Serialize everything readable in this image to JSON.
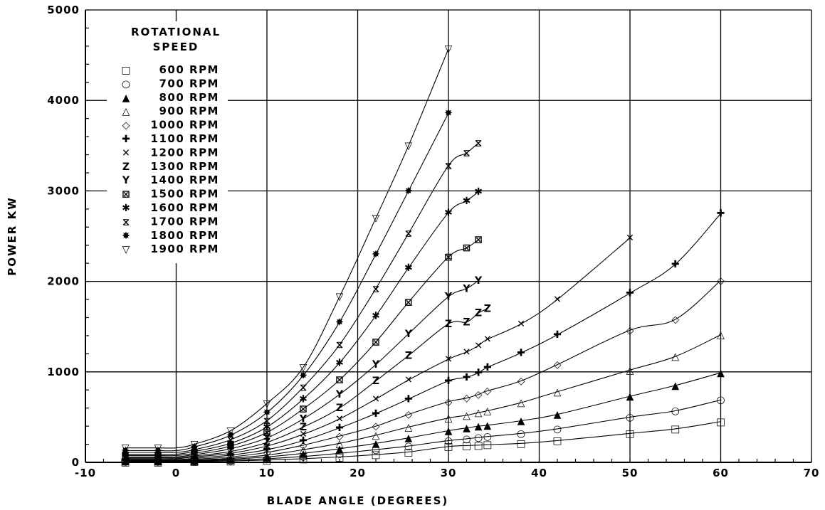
{
  "chart_data": {
    "type": "line",
    "xlabel": "BLADE ANGLE (DEGREES)",
    "ylabel": "POWER KW",
    "xlim": [
      -10,
      70
    ],
    "ylim": [
      0,
      5000
    ],
    "x_ticks": [
      "-10",
      "0",
      "10",
      "20",
      "30",
      "40",
      "50",
      "60",
      "70"
    ],
    "y_ticks": [
      "0",
      "1000",
      "2000",
      "3000",
      "4000",
      "5000"
    ],
    "grid": true,
    "legend_position": "top-left",
    "legend_title": [
      "ROTATIONAL",
      "SPEED"
    ],
    "series": [
      {
        "name": "600 RPM",
        "marker": "□",
        "x": [
          -5.6,
          -4,
          -2,
          0,
          2,
          6,
          10,
          14,
          18,
          22,
          25.6,
          30,
          32,
          33.3,
          34.3,
          38,
          42,
          50,
          55,
          60
        ],
        "y": [
          5,
          5,
          5,
          5,
          10,
          15,
          25,
          40,
          60,
          85,
          115,
          175,
          185,
          190,
          195,
          210,
          240,
          320,
          370,
          450
        ]
      },
      {
        "name": "700 RPM",
        "marker": "○",
        "x": [
          -5.6,
          -4,
          -2,
          0,
          2,
          6,
          10,
          14,
          18,
          22,
          25.6,
          30,
          32,
          33.3,
          34.3,
          38,
          42,
          50,
          55,
          60
        ],
        "y": [
          10,
          10,
          10,
          10,
          15,
          25,
          40,
          65,
          100,
          140,
          180,
          240,
          260,
          275,
          285,
          320,
          370,
          500,
          570,
          690
        ]
      },
      {
        "name": "800 RPM",
        "marker": "▲",
        "x": [
          -5.6,
          -4,
          -2,
          0,
          2,
          6,
          10,
          14,
          18,
          22,
          25.6,
          30,
          32,
          33.3,
          34.3,
          38,
          42,
          50,
          55,
          60
        ],
        "y": [
          15,
          15,
          15,
          15,
          20,
          35,
          60,
          100,
          150,
          210,
          270,
          350,
          380,
          400,
          410,
          460,
          530,
          730,
          850,
          990
        ]
      },
      {
        "name": "900 RPM",
        "marker": "△",
        "x": [
          -5.6,
          -4,
          -2,
          0,
          2,
          6,
          10,
          14,
          18,
          22,
          25.6,
          30,
          32,
          33.3,
          34.3,
          38,
          42,
          50,
          55,
          60
        ],
        "y": [
          20,
          20,
          20,
          20,
          25,
          45,
          80,
          140,
          210,
          300,
          390,
          490,
          520,
          550,
          570,
          660,
          780,
          1020,
          1170,
          1410
        ]
      },
      {
        "name": "1000 RPM",
        "marker": "◇",
        "x": [
          -5.6,
          -4,
          -2,
          0,
          2,
          6,
          10,
          14,
          18,
          22,
          25.6,
          30,
          32,
          33.3,
          34.3,
          38,
          42,
          50,
          55,
          60
        ],
        "y": [
          25,
          25,
          25,
          25,
          35,
          60,
          110,
          190,
          290,
          400,
          530,
          670,
          710,
          750,
          790,
          900,
          1080,
          1460,
          1580,
          2010
        ]
      },
      {
        "name": "1100 RPM",
        "marker": "✚",
        "x": [
          -5.6,
          -4,
          -2,
          0,
          2,
          6,
          10,
          14,
          18,
          22,
          25.6,
          30,
          32,
          33.3,
          34.3,
          38,
          42,
          50,
          55,
          60
        ],
        "y": [
          30,
          30,
          30,
          30,
          45,
          80,
          140,
          240,
          380,
          540,
          700,
          900,
          940,
          990,
          1050,
          1210,
          1410,
          1870,
          2190,
          2750
        ]
      },
      {
        "name": "1200 RPM",
        "marker": "✕",
        "x": [
          -5.6,
          -4,
          -2,
          0,
          2,
          6,
          10,
          14,
          18,
          22,
          25.6,
          30,
          32,
          33.3,
          34.3,
          38,
          42,
          50
        ],
        "y": [
          40,
          40,
          40,
          40,
          60,
          100,
          180,
          310,
          480,
          700,
          910,
          1140,
          1220,
          1290,
          1360,
          1530,
          1800,
          2480
        ]
      },
      {
        "name": "1300 RPM",
        "marker": "Z",
        "x": [
          -5.6,
          -4,
          -2,
          0,
          2,
          6,
          10,
          14,
          18,
          22,
          25.6,
          30,
          32,
          33.3,
          34.3
        ],
        "y": [
          50,
          50,
          50,
          50,
          70,
          120,
          220,
          390,
          600,
          900,
          1180,
          1530,
          1550,
          1650,
          1700
        ]
      },
      {
        "name": "1400 RPM",
        "marker": "Y",
        "x": [
          -5.6,
          -4,
          -2,
          0,
          2,
          6,
          10,
          14,
          18,
          22,
          25.6,
          30,
          32,
          33.3
        ],
        "y": [
          60,
          60,
          60,
          60,
          85,
          150,
          270,
          480,
          750,
          1080,
          1420,
          1830,
          1920,
          2010
        ]
      },
      {
        "name": "1500 RPM",
        "marker": "⊠",
        "x": [
          -5.6,
          -4,
          -2,
          0,
          2,
          6,
          10,
          14,
          18,
          22,
          25.6,
          30,
          32,
          33.3
        ],
        "y": [
          75,
          75,
          75,
          75,
          100,
          180,
          330,
          590,
          910,
          1330,
          1770,
          2270,
          2370,
          2460
        ]
      },
      {
        "name": "1600 RPM",
        "marker": "✱",
        "x": [
          -5.6,
          -4,
          -2,
          0,
          2,
          6,
          10,
          14,
          18,
          22,
          25.6,
          30,
          32,
          33.3
        ],
        "y": [
          90,
          90,
          90,
          90,
          120,
          210,
          390,
          700,
          1100,
          1620,
          2150,
          2760,
          2890,
          2990
        ]
      },
      {
        "name": "1700 RPM",
        "marker": "⧖",
        "x": [
          -5.6,
          -4,
          -2,
          0,
          2,
          6,
          10,
          14,
          18,
          22,
          25.6,
          30,
          32,
          33.3
        ],
        "y": [
          110,
          110,
          110,
          110,
          140,
          250,
          460,
          830,
          1300,
          1920,
          2530,
          3280,
          3420,
          3530
        ]
      },
      {
        "name": "1800 RPM",
        "marker": "✸",
        "x": [
          -5.6,
          -4,
          -2,
          0,
          2,
          6,
          10,
          14,
          18,
          22,
          25.6,
          30
        ],
        "y": [
          130,
          130,
          130,
          130,
          170,
          300,
          550,
          960,
          1550,
          2300,
          3000,
          3860
        ]
      },
      {
        "name": "1900 RPM",
        "marker": "▽",
        "x": [
          -5.6,
          -4,
          -2,
          0,
          2,
          6,
          10,
          14,
          18,
          22,
          25.6,
          30
        ],
        "y": [
          160,
          160,
          160,
          160,
          200,
          350,
          650,
          1050,
          1830,
          2700,
          3500,
          4570
        ]
      }
    ]
  }
}
